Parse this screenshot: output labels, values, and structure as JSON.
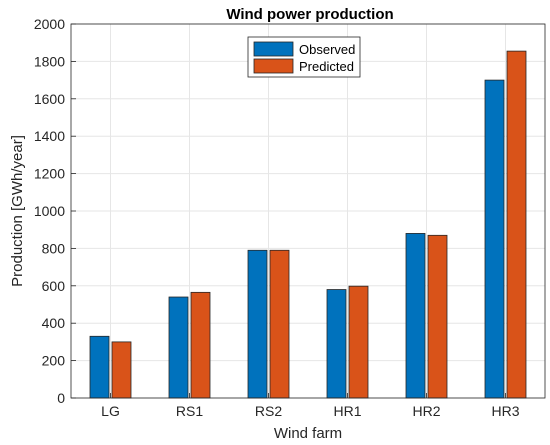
{
  "chart_data": {
    "type": "bar",
    "title": "Wind power production",
    "xlabel": "Wind farm",
    "ylabel": "Production [GWh/year]",
    "categories": [
      "LG",
      "RS1",
      "RS2",
      "HR1",
      "HR2",
      "HR3"
    ],
    "series": [
      {
        "name": "Observed",
        "color": "#0072bd",
        "values": [
          330,
          540,
          790,
          580,
          880,
          1700
        ]
      },
      {
        "name": "Predicted",
        "color": "#d95319",
        "values": [
          300,
          565,
          790,
          598,
          870,
          1855
        ]
      }
    ],
    "ylim": [
      0,
      2000
    ],
    "yticks": [
      0,
      200,
      400,
      600,
      800,
      1000,
      1200,
      1400,
      1600,
      1800,
      2000
    ],
    "grid": true,
    "legend_position": "top-center"
  }
}
